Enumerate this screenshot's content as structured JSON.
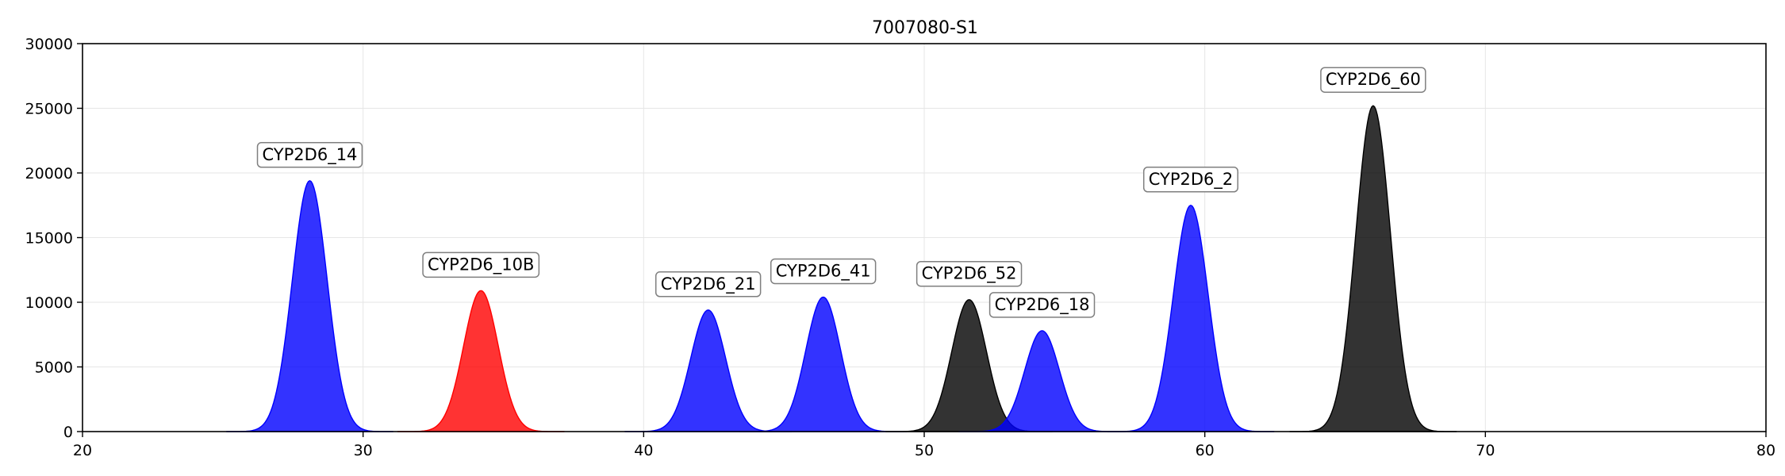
{
  "chart_data": {
    "type": "area",
    "title": "7007080-S1",
    "xlabel": "",
    "ylabel": "",
    "xlim": [
      20,
      80
    ],
    "ylim": [
      0,
      30000
    ],
    "xticks": [
      20,
      30,
      40,
      50,
      60,
      70,
      80
    ],
    "yticks": [
      0,
      5000,
      10000,
      15000,
      20000,
      25000,
      30000
    ],
    "grid": true,
    "peaks": [
      {
        "label": "CYP2D6_14",
        "center": 28.1,
        "height": 19400,
        "sigma": 0.62,
        "color": "#0000ff"
      },
      {
        "label": "CYP2D6_10B",
        "center": 34.2,
        "height": 10900,
        "sigma": 0.62,
        "color": "#ff0000"
      },
      {
        "label": "CYP2D6_21",
        "center": 42.3,
        "height": 9400,
        "sigma": 0.62,
        "color": "#0000ff"
      },
      {
        "label": "CYP2D6_41",
        "center": 46.4,
        "height": 10400,
        "sigma": 0.62,
        "color": "#0000ff"
      },
      {
        "label": "CYP2D6_52",
        "center": 51.6,
        "height": 10200,
        "sigma": 0.62,
        "color": "#000000"
      },
      {
        "label": "CYP2D6_18",
        "center": 54.2,
        "height": 7800,
        "sigma": 0.62,
        "color": "#0000ff"
      },
      {
        "label": "CYP2D6_2",
        "center": 59.5,
        "height": 17500,
        "sigma": 0.62,
        "color": "#0000ff"
      },
      {
        "label": "CYP2D6_60",
        "center": 66.0,
        "height": 25200,
        "sigma": 0.62,
        "color": "#000000"
      }
    ]
  }
}
